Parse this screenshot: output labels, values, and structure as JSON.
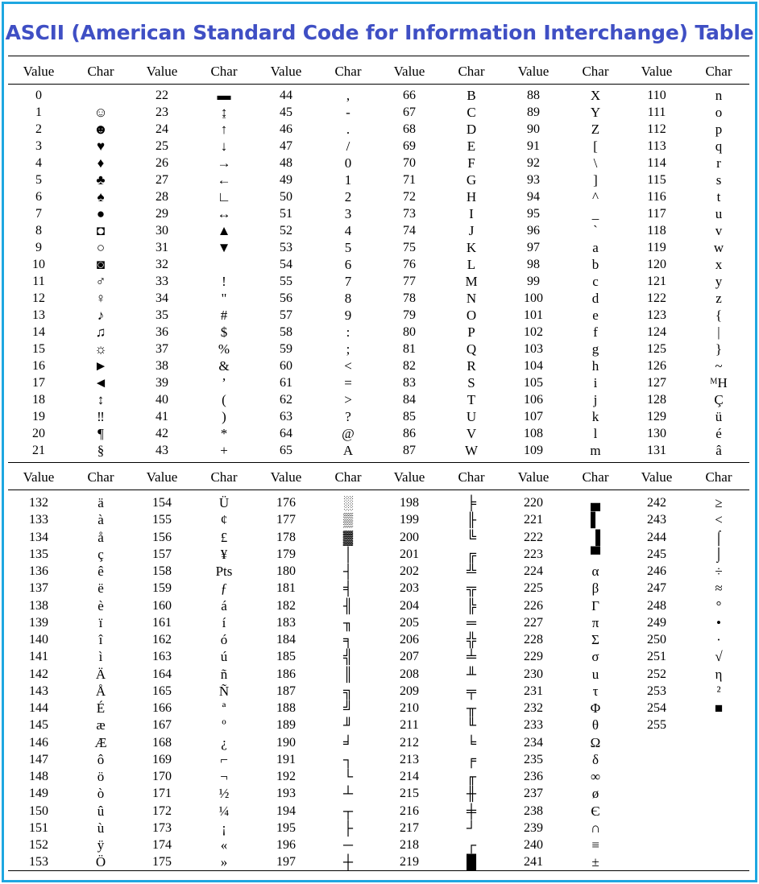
{
  "title": "ASCII (American Standard Code for Information Interchange) Table",
  "headers": {
    "value": "Value",
    "char": "Char"
  },
  "section1": {
    "columns": [
      {
        "values": [
          "0",
          "1",
          "2",
          "3",
          "4",
          "5",
          "6",
          "7",
          "8",
          "9",
          "10",
          "11",
          "12",
          "13",
          "14",
          "15",
          "16",
          "17",
          "18",
          "19",
          "20",
          "21"
        ],
        "chars": [
          "",
          "☺",
          "☻",
          "♥",
          "♦",
          "♣",
          "♠",
          "●",
          "◘",
          "○",
          "◙",
          "♂",
          "♀",
          "♪",
          "♫",
          "☼",
          "►",
          "◄",
          "↕",
          "‼",
          "¶",
          "§"
        ]
      },
      {
        "values": [
          "22",
          "23",
          "24",
          "25",
          "26",
          "27",
          "28",
          "29",
          "30",
          "31",
          "32",
          "33",
          "34",
          "35",
          "36",
          "37",
          "38",
          "39",
          "40",
          "41",
          "42",
          "43"
        ],
        "chars": [
          "▬",
          "↨",
          "↑",
          "↓",
          "→",
          "←",
          "∟",
          "↔",
          "▲",
          "▼",
          "",
          "!",
          "\"",
          "#",
          "$",
          "%",
          "&",
          "’",
          "(",
          ")",
          "*",
          "+"
        ]
      },
      {
        "values": [
          "44",
          "45",
          "46",
          "47",
          "48",
          "49",
          "50",
          "51",
          "52",
          "53",
          "54",
          "55",
          "56",
          "57",
          "58",
          "59",
          "60",
          "61",
          "62",
          "63",
          "64",
          "65"
        ],
        "chars": [
          ",",
          "-",
          ".",
          "/",
          "0",
          "1",
          "2",
          "3",
          "4",
          "5",
          "6",
          "7",
          "8",
          "9",
          ":",
          ";",
          "<",
          "=",
          ">",
          "?",
          "@",
          "A"
        ]
      },
      {
        "values": [
          "66",
          "67",
          "68",
          "69",
          "70",
          "71",
          "72",
          "73",
          "74",
          "75",
          "76",
          "77",
          "78",
          "79",
          "80",
          "81",
          "82",
          "83",
          "84",
          "85",
          "86",
          "87"
        ],
        "chars": [
          "B",
          "C",
          "D",
          "E",
          "F",
          "G",
          "H",
          "I",
          "J",
          "K",
          "L",
          "M",
          "N",
          "O",
          "P",
          "Q",
          "R",
          "S",
          "T",
          "U",
          "V",
          "W"
        ]
      },
      {
        "values": [
          "88",
          "89",
          "90",
          "91",
          "92",
          "93",
          "94",
          "95",
          "96",
          "97",
          "98",
          "99",
          "100",
          "101",
          "102",
          "103",
          "104",
          "105",
          "106",
          "107",
          "108",
          "109"
        ],
        "chars": [
          "X",
          "Y",
          "Z",
          "[",
          "\\",
          "]",
          "^",
          "_",
          "`",
          "a",
          "b",
          "c",
          "d",
          "e",
          "f",
          "g",
          "h",
          "i",
          "j",
          "k",
          "l",
          "m"
        ]
      },
      {
        "values": [
          "110",
          "111",
          "112",
          "113",
          "114",
          "115",
          "116",
          "117",
          "118",
          "119",
          "120",
          "121",
          "122",
          "123",
          "124",
          "125",
          "126",
          "127",
          "128",
          "129",
          "130",
          "131"
        ],
        "chars": [
          "n",
          "o",
          "p",
          "q",
          "r",
          "s",
          "t",
          "u",
          "v",
          "w",
          "x",
          "y",
          "z",
          "{",
          "|",
          "}",
          "~",
          "ᴹH",
          "Ç",
          "ü",
          "é",
          "â"
        ]
      }
    ]
  },
  "section2": {
    "columns": [
      {
        "values": [
          "132",
          "133",
          "134",
          "135",
          "136",
          "137",
          "138",
          "139",
          "140",
          "141",
          "142",
          "143",
          "144",
          "145",
          "146",
          "147",
          "148",
          "149",
          "150",
          "151",
          "152",
          "153"
        ],
        "chars": [
          "ä",
          "à",
          "å",
          "ç",
          "ê",
          "ë",
          "è",
          "ï",
          "î",
          "ì",
          "Ä",
          "Å",
          "É",
          "æ",
          "Æ",
          "ô",
          "ö",
          "ò",
          "û",
          "ù",
          "ÿ",
          "Ö"
        ]
      },
      {
        "values": [
          "154",
          "155",
          "156",
          "157",
          "158",
          "159",
          "160",
          "161",
          "162",
          "163",
          "164",
          "165",
          "166",
          "167",
          "168",
          "169",
          "170",
          "171",
          "172",
          "173",
          "174",
          "175"
        ],
        "chars": [
          "Ü",
          "¢",
          "£",
          "¥",
          "Pts",
          "ƒ",
          "á",
          "í",
          "ó",
          "ú",
          "ñ",
          "Ñ",
          "ª",
          "º",
          "¿",
          "⌐",
          "¬",
          "½",
          "¼",
          "¡",
          "«",
          "»"
        ]
      },
      {
        "values": [
          "176",
          "177",
          "178",
          "179",
          "180",
          "181",
          "182",
          "183",
          "184",
          "185",
          "186",
          "187",
          "188",
          "189",
          "190",
          "191",
          "192",
          "193",
          "194",
          "195",
          "196",
          "197"
        ],
        "chars": [
          "░",
          "▒",
          "▓",
          "│",
          "┤",
          "╡",
          "╢",
          "╖",
          "╕",
          "╣",
          "║",
          "╗",
          "╝",
          "╜",
          "╛",
          "┐",
          "└",
          "┴",
          "┬",
          "├",
          "─",
          "┼"
        ]
      },
      {
        "values": [
          "198",
          "199",
          "200",
          "201",
          "202",
          "203",
          "204",
          "205",
          "206",
          "207",
          "208",
          "209",
          "210",
          "211",
          "212",
          "213",
          "214",
          "215",
          "216",
          "217",
          "218",
          "219"
        ],
        "chars": [
          "╞",
          "╟",
          "╚",
          "╔",
          "╩",
          "╦",
          "╠",
          "═",
          "╬",
          "╧",
          "╨",
          "╤",
          "╥",
          "╙",
          "╘",
          "╒",
          "╓",
          "╫",
          "╪",
          "┘",
          "┌",
          "█"
        ]
      },
      {
        "values": [
          "220",
          "221",
          "222",
          "223",
          "224",
          "225",
          "226",
          "227",
          "228",
          "229",
          "230",
          "231",
          "232",
          "233",
          "234",
          "235",
          "236",
          "237",
          "238",
          "239",
          "240",
          "241"
        ],
        "chars": [
          "▄",
          "▌",
          "▐",
          "▀",
          "α",
          "β",
          "Γ",
          "π",
          "Σ",
          "σ",
          "u",
          "τ",
          "Φ",
          "θ",
          "Ω",
          "δ",
          "∞",
          "ø",
          "Є",
          "∩",
          "≡",
          "±"
        ]
      },
      {
        "values": [
          "242",
          "243",
          "244",
          "245",
          "246",
          "247",
          "248",
          "249",
          "250",
          "251",
          "252",
          "253",
          "254",
          "255",
          "",
          "",
          "",
          "",
          "",
          "",
          "",
          ""
        ],
        "chars": [
          "≥",
          "<",
          "⌠",
          "⌡",
          "÷",
          "≈",
          "°",
          "•",
          "·",
          "√",
          "η",
          "²",
          "■",
          "",
          "",
          "",
          "",
          "",
          "",
          "",
          "",
          ""
        ]
      }
    ]
  }
}
